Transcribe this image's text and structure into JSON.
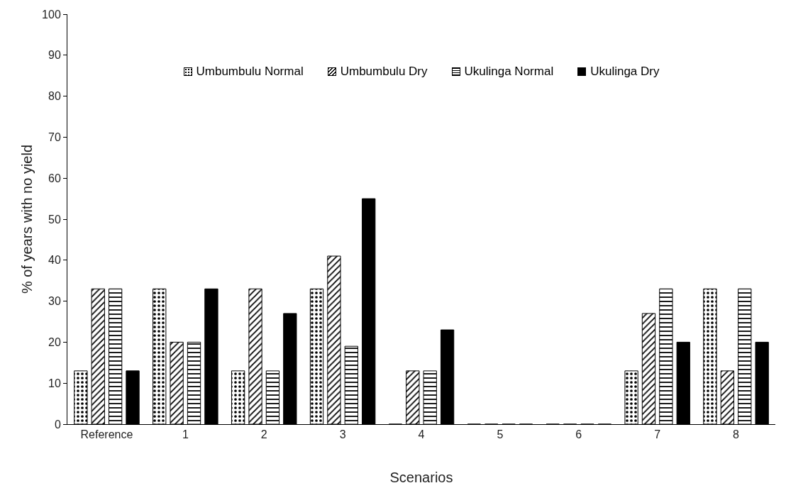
{
  "chart_data": {
    "type": "bar",
    "xlabel": "Scenarios",
    "ylabel": "% of years with no yield",
    "categories": [
      "Reference",
      "1",
      "2",
      "3",
      "4",
      "5",
      "6",
      "7",
      "8"
    ],
    "series": [
      {
        "name": "Umbumbulu Normal",
        "color": "#000000",
        "values": [
          13,
          33,
          13,
          33,
          0,
          0,
          0,
          13,
          33
        ]
      },
      {
        "name": "Umbumbulu Dry",
        "color": "#000000",
        "values": [
          33,
          20,
          33,
          41,
          13,
          0,
          0,
          27,
          13
        ]
      },
      {
        "name": "Ukulinga Normal",
        "color": "#000000",
        "values": [
          33,
          20,
          13,
          19,
          13,
          0,
          0,
          33,
          33
        ]
      },
      {
        "name": "Ukulinga Dry",
        "color": "#000000",
        "values": [
          13,
          33,
          27,
          55,
          23,
          0,
          0,
          20,
          20
        ]
      }
    ],
    "ylim": [
      0,
      100
    ],
    "yticks": [
      0,
      10,
      20,
      30,
      40,
      50,
      60,
      70,
      80,
      90,
      100
    ],
    "grid": false,
    "legend": "top"
  }
}
